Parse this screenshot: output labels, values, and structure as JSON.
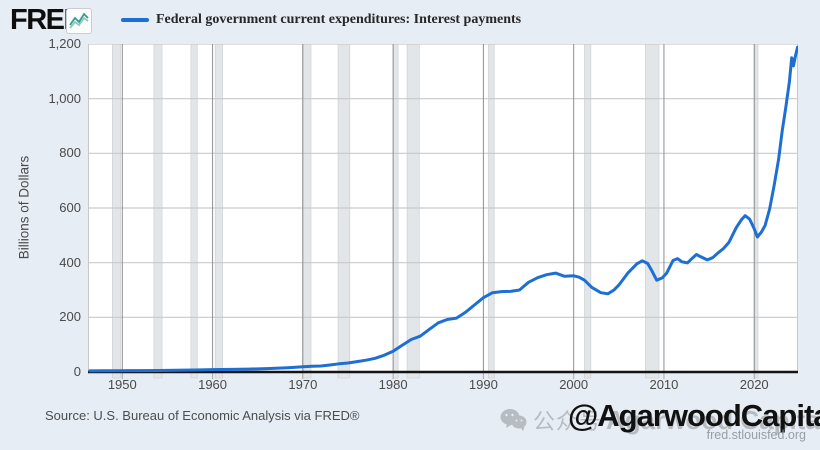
{
  "page": {
    "background": "#e7edf4"
  },
  "header": {
    "logo_text": "FRED",
    "chart_icon": "line-chart-icon",
    "legend": {
      "series_color": "#1d6fd2",
      "label": "Federal government current expenditures: Interest payments"
    }
  },
  "chart_data": {
    "type": "line",
    "title": "Federal government current expenditures: Interest payments",
    "xlabel": "",
    "ylabel": "Billions of Dollars",
    "x_domain": [
      1946.2,
      2024.85
    ],
    "ylim": [
      0,
      1200
    ],
    "grid": true,
    "legend_position": "top",
    "line_color": "#1d6fd2",
    "recession_band_color": "#e3e6e9",
    "y_ticks": [
      {
        "value": 0,
        "label": "0"
      },
      {
        "value": 200,
        "label": "200"
      },
      {
        "value": 400,
        "label": "400"
      },
      {
        "value": 600,
        "label": "600"
      },
      {
        "value": 800,
        "label": "800"
      },
      {
        "value": 1000,
        "label": "1,000"
      },
      {
        "value": 1200,
        "label": "1,200"
      }
    ],
    "x_ticks": [
      {
        "value": 1950,
        "label": "1950"
      },
      {
        "value": 1960,
        "label": "1960"
      },
      {
        "value": 1970,
        "label": "1970"
      },
      {
        "value": 1980,
        "label": "1980"
      },
      {
        "value": 1990,
        "label": "1990"
      },
      {
        "value": 2000,
        "label": "2000"
      },
      {
        "value": 2010,
        "label": "2010"
      },
      {
        "value": 2020,
        "label": "2020"
      }
    ],
    "recessions": [
      [
        1948.9,
        1949.8
      ],
      [
        1953.5,
        1954.4
      ],
      [
        1957.6,
        1958.3
      ],
      [
        1960.3,
        1961.1
      ],
      [
        1969.95,
        1970.9
      ],
      [
        1973.9,
        1975.2
      ],
      [
        1980.0,
        1980.55
      ],
      [
        1981.55,
        1982.9
      ],
      [
        1990.55,
        1991.2
      ],
      [
        2001.2,
        2001.9
      ],
      [
        2007.95,
        2009.45
      ],
      [
        2020.08,
        2020.42
      ]
    ],
    "points": [
      [
        1946.4,
        4
      ],
      [
        1948,
        4.4
      ],
      [
        1950,
        4.8
      ],
      [
        1952,
        5.3
      ],
      [
        1954,
        5.6
      ],
      [
        1956,
        6.3
      ],
      [
        1958,
        7.2
      ],
      [
        1960,
        8.6
      ],
      [
        1962,
        9.4
      ],
      [
        1964,
        10.7
      ],
      [
        1966,
        12.4
      ],
      [
        1968,
        15
      ],
      [
        1969,
        17
      ],
      [
        1970,
        19.5
      ],
      [
        1971,
        20.8
      ],
      [
        1972,
        22
      ],
      [
        1973,
        25.5
      ],
      [
        1974,
        30
      ],
      [
        1975,
        33
      ],
      [
        1976,
        38
      ],
      [
        1977,
        43
      ],
      [
        1978,
        50
      ],
      [
        1979,
        61
      ],
      [
        1980,
        76
      ],
      [
        1981,
        98
      ],
      [
        1982,
        119
      ],
      [
        1983,
        131
      ],
      [
        1984,
        156
      ],
      [
        1985,
        180
      ],
      [
        1986,
        192
      ],
      [
        1987,
        197
      ],
      [
        1988,
        218
      ],
      [
        1989,
        245
      ],
      [
        1990,
        272
      ],
      [
        1991,
        290
      ],
      [
        1992,
        294
      ],
      [
        1993,
        295
      ],
      [
        1994,
        300
      ],
      [
        1995,
        328
      ],
      [
        1996,
        345
      ],
      [
        1997,
        356
      ],
      [
        1998,
        362
      ],
      [
        1999,
        350
      ],
      [
        2000,
        352
      ],
      [
        2000.6,
        347
      ],
      [
        2001.2,
        336
      ],
      [
        2002,
        310
      ],
      [
        2003,
        290
      ],
      [
        2003.8,
        286
      ],
      [
        2004.5,
        301
      ],
      [
        2005,
        318
      ],
      [
        2006,
        362
      ],
      [
        2007,
        396
      ],
      [
        2007.6,
        407
      ],
      [
        2008.2,
        397
      ],
      [
        2008.7,
        368
      ],
      [
        2009.2,
        336
      ],
      [
        2009.8,
        344
      ],
      [
        2010.3,
        362
      ],
      [
        2011,
        408
      ],
      [
        2011.5,
        415
      ],
      [
        2012,
        403
      ],
      [
        2012.6,
        399
      ],
      [
        2013.2,
        418
      ],
      [
        2013.6,
        430
      ],
      [
        2014.1,
        421
      ],
      [
        2014.8,
        410
      ],
      [
        2015.4,
        418
      ],
      [
        2016,
        436
      ],
      [
        2016.6,
        452
      ],
      [
        2017.2,
        474
      ],
      [
        2018,
        528
      ],
      [
        2018.6,
        558
      ],
      [
        2019,
        572
      ],
      [
        2019.5,
        559
      ],
      [
        2020,
        524
      ],
      [
        2020.35,
        494
      ],
      [
        2020.8,
        512
      ],
      [
        2021.2,
        536
      ],
      [
        2021.7,
        596
      ],
      [
        2022.2,
        682
      ],
      [
        2022.7,
        778
      ],
      [
        2023.1,
        882
      ],
      [
        2023.5,
        968
      ],
      [
        2023.9,
        1062
      ],
      [
        2024.15,
        1150
      ],
      [
        2024.35,
        1120
      ],
      [
        2024.55,
        1154
      ],
      [
        2024.8,
        1188
      ]
    ]
  },
  "footer": {
    "source": "Source: U.S. Bureau of Economic Analysis via FRED®",
    "watermark": {
      "wechat_icon": "wechat-icon",
      "channel_label": "公众号",
      "handle_ghost": "Agarwood Capital",
      "handle": "@AgarwoodCapital",
      "site": "fred.stlouisfed.org"
    }
  }
}
